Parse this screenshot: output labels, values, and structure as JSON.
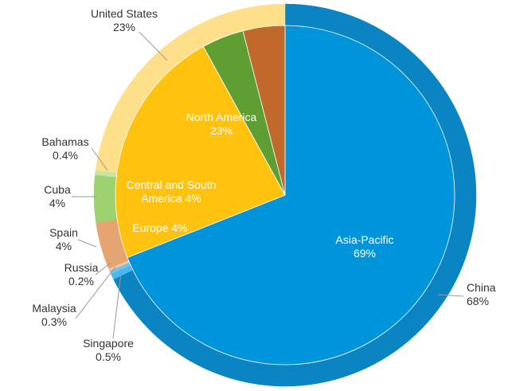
{
  "chart_data": {
    "type": "pie",
    "title": "",
    "inner_ring": {
      "name": "",
      "slices": [
        {
          "label": "Asia-Pacific",
          "value": 69,
          "value_text": "69%",
          "color": "#0095DA",
          "label_color": "#ffffff"
        },
        {
          "label": "North America",
          "value": 23,
          "value_text": "23%",
          "color": "#FFC20E",
          "label_color": "#ffffff"
        },
        {
          "label": "Central and South America",
          "value": 4,
          "value_text": "4%",
          "color": "#5E9E32",
          "label_color": "#ffffff"
        },
        {
          "label": "Europe",
          "value": 4,
          "value_text": "4%",
          "color": "#C0692A",
          "label_color": "#ffffff"
        }
      ]
    },
    "outer_ring": {
      "name": "",
      "slices": [
        {
          "label": "China",
          "value": 68,
          "value_text": "68%",
          "color": "#0A84C2",
          "region": "Asia-Pacific"
        },
        {
          "label": "Singapore",
          "value": 0.5,
          "value_text": "0.5%",
          "color": "#4DB6EC",
          "region": "Asia-Pacific"
        },
        {
          "label": "Malaysia",
          "value": 0.3,
          "value_text": "0.3%",
          "color": "#6EC6F0",
          "region": "Asia-Pacific"
        },
        {
          "label": "Russia",
          "value": 0.2,
          "value_text": "0.2%",
          "color": "#F3C6A0",
          "region": "Europe"
        },
        {
          "label": "Spain",
          "value": 4,
          "value_text": "4%",
          "color": "#E5A470",
          "region": "Europe"
        },
        {
          "label": "Cuba",
          "value": 4,
          "value_text": "4%",
          "color": "#9ED16F",
          "region": "Central and South America"
        },
        {
          "label": "Bahamas",
          "value": 0.4,
          "value_text": "0.4%",
          "color": "#C7E6A6",
          "region": "Central and South America"
        },
        {
          "label": "United States",
          "value": 23,
          "value_text": "23%",
          "color": "#FFE08A",
          "region": "North America"
        }
      ]
    }
  }
}
